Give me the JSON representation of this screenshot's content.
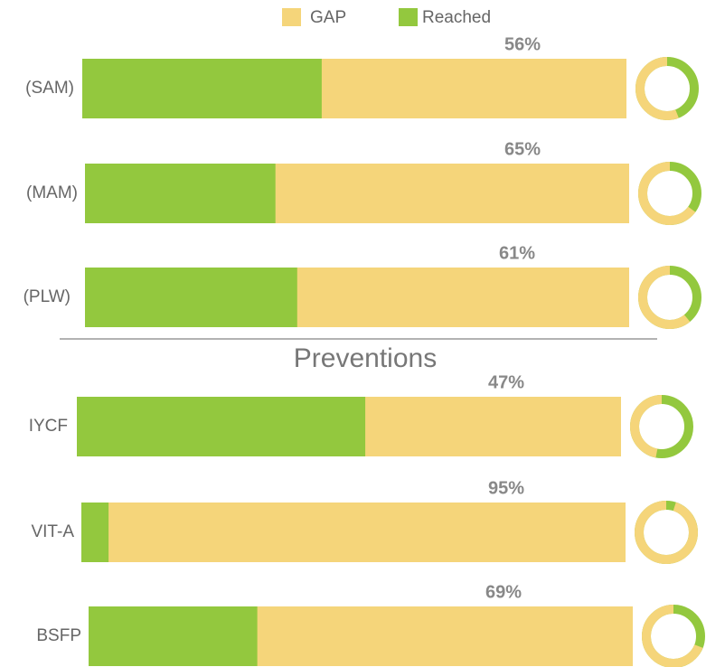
{
  "chart_data": {
    "type": "bar",
    "legend": [
      {
        "name": "GAP",
        "color": "#f5d57a"
      },
      {
        "name": "Reached",
        "color": "#93c83e"
      }
    ],
    "section_title": "Preventions",
    "categories": [
      "(SAM)",
      "(MAM)",
      "(PLW)",
      "IYCF",
      "VIT-A",
      "BSFP"
    ],
    "values": [
      56,
      65,
      61,
      47,
      95,
      69
    ],
    "value_labels": [
      "56%",
      "65%",
      "61%",
      "47%",
      "95%",
      "69%"
    ]
  }
}
